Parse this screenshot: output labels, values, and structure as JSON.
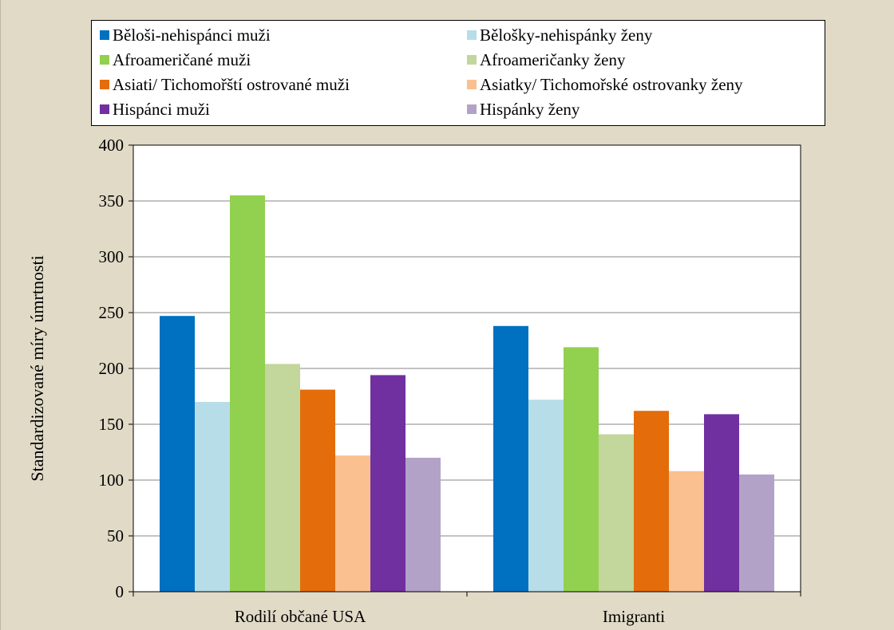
{
  "chart_data": {
    "type": "bar",
    "title": "",
    "xlabel": "",
    "ylabel": "Standardizované míry úmrtnosti",
    "categories": [
      "Rodilí občané USA",
      "Imigranti"
    ],
    "ylim": [
      0,
      400
    ],
    "yticks": [
      0,
      50,
      100,
      150,
      200,
      250,
      300,
      350,
      400
    ],
    "grid": true,
    "legend_position": "top",
    "series": [
      {
        "name": "Běloši-nehispánci muži",
        "color": "#0070c0",
        "values": [
          247,
          238
        ]
      },
      {
        "name": "Bělošky-nehispánky ženy",
        "color": "#b7dde8",
        "values": [
          170,
          172
        ]
      },
      {
        "name": "Afroameričané muži",
        "color": "#92d050",
        "values": [
          355,
          219
        ]
      },
      {
        "name": "Afroameričanky ženy",
        "color": "#c3d69b",
        "values": [
          204,
          141
        ]
      },
      {
        "name": "Asiati/ Tichomořští ostrované muži",
        "color": "#e46c0a",
        "values": [
          181,
          162
        ]
      },
      {
        "name": "Asiatky/ Tichomořské ostrovanky ženy",
        "color": "#fac090",
        "values": [
          122,
          108
        ]
      },
      {
        "name": "Hispánci muži",
        "color": "#7030a0",
        "values": [
          194,
          159
        ]
      },
      {
        "name": "Hispánky ženy",
        "color": "#b3a2c7",
        "values": [
          120,
          105
        ]
      }
    ]
  }
}
